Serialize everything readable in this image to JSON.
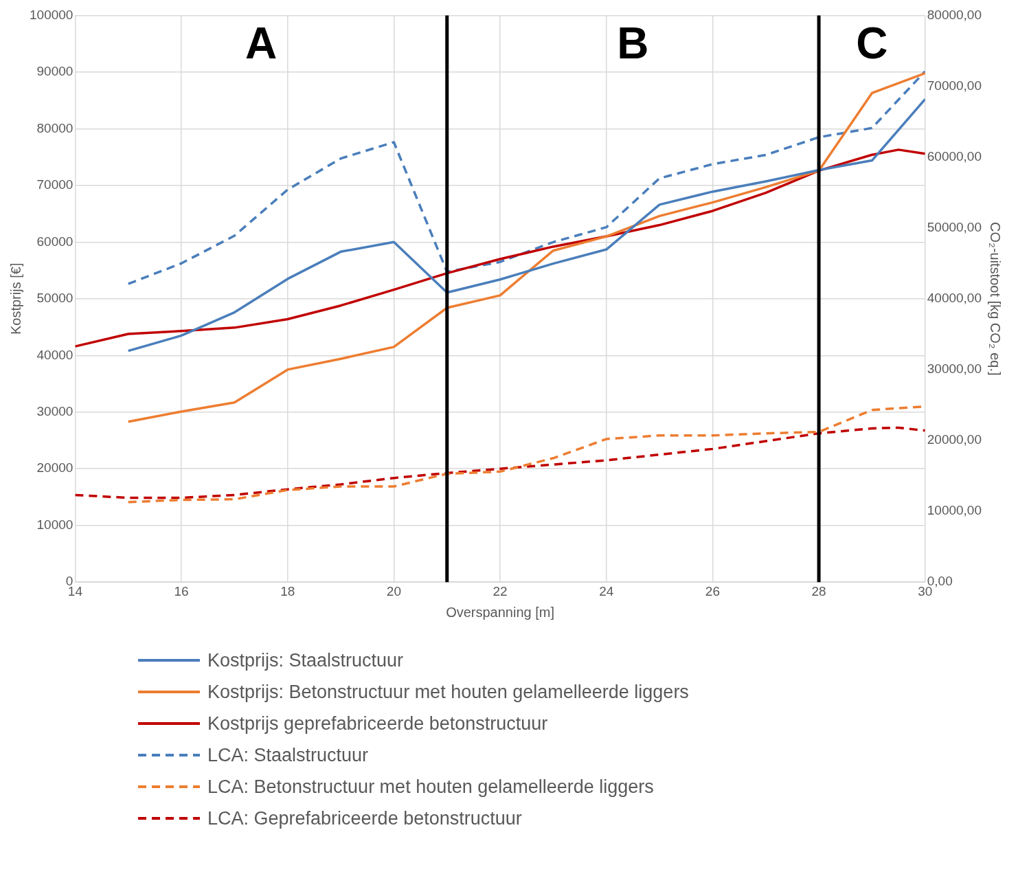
{
  "chart_data": {
    "type": "line",
    "xlabel": "Overspanning [m]",
    "ylabel": "Kostprijs [€]",
    "y2label": "CO₂-uitstoot [kg CO₂ eq.]",
    "xlim": [
      14,
      30
    ],
    "xticks": [
      14,
      16,
      18,
      20,
      22,
      24,
      26,
      28,
      30
    ],
    "ylim": [
      0,
      100000
    ],
    "yticks": [
      0,
      10000,
      20000,
      30000,
      40000,
      50000,
      60000,
      70000,
      80000,
      90000,
      100000
    ],
    "y2lim": [
      0,
      80000
    ],
    "y2ticks": [
      {
        "value": 0,
        "label": "0,00"
      },
      {
        "value": 10000,
        "label": "10000,00"
      },
      {
        "value": 20000,
        "label": "20000,00"
      },
      {
        "value": 30000,
        "label": "30000,00"
      },
      {
        "value": 40000,
        "label": "40000,00"
      },
      {
        "value": 50000,
        "label": "50000,00"
      },
      {
        "value": 60000,
        "label": "60000,00"
      },
      {
        "value": 70000,
        "label": "70000,00"
      },
      {
        "value": 80000,
        "label": "80000,00"
      }
    ],
    "grid": true,
    "legend": "bottom",
    "marker": "none",
    "series": [
      {
        "name": "Kostprijs: Staalstructuur",
        "color": "#4a7ebb",
        "line_style": "solid",
        "x": [
          15,
          16,
          17,
          18,
          19,
          20,
          21,
          22,
          23,
          24,
          25,
          26,
          27,
          28,
          29,
          30
        ],
        "values": [
          40800,
          43500,
          47600,
          53500,
          58300,
          60000,
          51100,
          53400,
          56200,
          58700,
          66600,
          68900,
          70700,
          72700,
          74400,
          85200
        ]
      },
      {
        "name": "Kostprijs: Betonstructuur met houten gelamelleerde liggers",
        "color": "#ed7d31",
        "line_style": "solid",
        "x": [
          15,
          16,
          17,
          18,
          19,
          20,
          21,
          22,
          23,
          24,
          25,
          26,
          27,
          28,
          29,
          30
        ],
        "values": [
          28300,
          30100,
          31700,
          37500,
          39400,
          41500,
          48400,
          50600,
          58500,
          61000,
          64600,
          67000,
          69700,
          72600,
          86300,
          89800
        ]
      },
      {
        "name": "Kostprijs geprefabriceerde betonstructuur",
        "color": "#c00000",
        "line_style": "solid",
        "x": [
          14,
          15,
          16,
          17,
          18,
          19,
          20,
          21,
          22,
          23,
          24,
          25,
          26,
          27,
          28,
          29,
          29.5,
          30
        ],
        "values": [
          41600,
          43800,
          44300,
          44900,
          46400,
          48800,
          51600,
          54500,
          57000,
          59200,
          61000,
          63000,
          65500,
          68700,
          72600,
          75400,
          76300,
          75600
        ]
      },
      {
        "name": "LCA: Staalstructuur",
        "color": "#4a7ebb",
        "line_style": "dashed",
        "axis": "y2",
        "x": [
          15,
          16,
          17,
          18,
          19,
          20,
          21,
          22,
          23,
          24,
          25,
          26,
          27,
          28,
          29,
          30
        ],
        "values": [
          42100,
          45000,
          48900,
          55400,
          59800,
          62100,
          43800,
          45200,
          48000,
          50100,
          57000,
          59000,
          60300,
          62800,
          64100,
          72100
        ]
      },
      {
        "name": "LCA: Betonstructuur met houten gelamelleerde liggers",
        "color": "#ed7d31",
        "line_style": "dashed",
        "axis": "y2",
        "x": [
          15,
          16,
          17,
          18,
          19,
          20,
          21,
          22,
          23,
          24,
          25,
          26,
          27,
          28,
          29,
          30
        ],
        "values": [
          11300,
          11600,
          11700,
          13000,
          13500,
          13500,
          15300,
          15600,
          17500,
          20200,
          20700,
          20700,
          21000,
          21200,
          24300,
          24800
        ]
      },
      {
        "name": "LCA: Geprefabriceerde betonstructuur",
        "color": "#c00000",
        "line_style": "dashed",
        "axis": "y2",
        "x": [
          14,
          15,
          16,
          17,
          18,
          19,
          20,
          21,
          22,
          23,
          24,
          25,
          26,
          27,
          28,
          29,
          29.5,
          30
        ],
        "values": [
          12300,
          11900,
          11900,
          12300,
          13100,
          13800,
          14700,
          15400,
          16000,
          16600,
          17200,
          18000,
          18800,
          19900,
          21000,
          21700,
          21800,
          21400
        ]
      }
    ],
    "ref_lines": [
      {
        "axis": "x",
        "value": 21,
        "color": "#000000"
      },
      {
        "axis": "x",
        "value": 28,
        "color": "#000000"
      }
    ],
    "annotations": [
      "A",
      "B",
      "C"
    ]
  }
}
